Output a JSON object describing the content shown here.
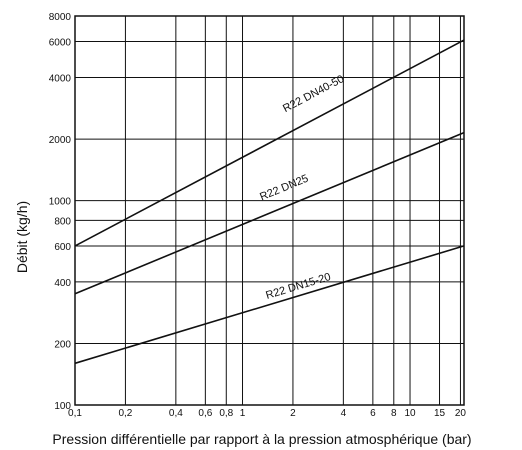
{
  "chart_data": {
    "type": "line",
    "xlabel": "Pression différentielle par rapport à la pression atmosphérique (bar)",
    "ylabel": "Débit (kg/h)",
    "x_scale": "log",
    "y_scale": "log",
    "xlim": [
      0.1,
      21
    ],
    "ylim": [
      100,
      8000
    ],
    "grid": true,
    "x_ticks": [
      {
        "value": 0.1,
        "label": "0,1"
      },
      {
        "value": 0.2,
        "label": "0,2"
      },
      {
        "value": 0.4,
        "label": "0,4"
      },
      {
        "value": 0.6,
        "label": "0,6"
      },
      {
        "value": 0.8,
        "label": "0,8"
      },
      {
        "value": 1,
        "label": "1"
      },
      {
        "value": 2,
        "label": "2"
      },
      {
        "value": 4,
        "label": "4"
      },
      {
        "value": 6,
        "label": "6"
      },
      {
        "value": 8,
        "label": "8"
      },
      {
        "value": 10,
        "label": "10"
      },
      {
        "value": 15,
        "label": "15"
      },
      {
        "value": 20,
        "label": "20"
      }
    ],
    "y_ticks": [
      {
        "value": 100,
        "label": "100"
      },
      {
        "value": 200,
        "label": "200"
      },
      {
        "value": 400,
        "label": "400"
      },
      {
        "value": 600,
        "label": "600"
      },
      {
        "value": 800,
        "label": "800"
      },
      {
        "value": 1000,
        "label": "1000"
      },
      {
        "value": 2000,
        "label": "2000"
      },
      {
        "value": 4000,
        "label": "4000"
      },
      {
        "value": 6000,
        "label": "6000"
      },
      {
        "value": 8000,
        "label": "8000"
      }
    ],
    "series": [
      {
        "name": "R22 DN40-50",
        "x": [
          0.1,
          21
        ],
        "y": [
          600,
          6100
        ],
        "label_at": [
          1.8,
          2700
        ]
      },
      {
        "name": "R22 DN25",
        "x": [
          0.1,
          21
        ],
        "y": [
          350,
          2150
        ],
        "label_at": [
          1.3,
          1000
        ]
      },
      {
        "name": "R22 DN15-20",
        "x": [
          0.1,
          21
        ],
        "y": [
          160,
          600
        ],
        "label_at": [
          1.4,
          330
        ]
      }
    ]
  }
}
